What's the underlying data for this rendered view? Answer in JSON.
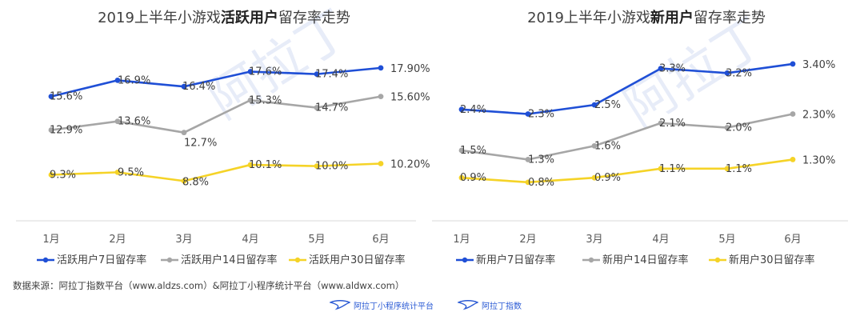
{
  "chart_data": [
    {
      "type": "line",
      "title_parts": [
        "2019上半年小游戏",
        "活跃用户",
        "留存率走势"
      ],
      "categories": [
        "1月",
        "2月",
        "3月",
        "4月",
        "5月",
        "6月"
      ],
      "series": [
        {
          "name": "活跃用户7日留存率",
          "color": "#1f4fd6",
          "values": [
            15.6,
            16.9,
            16.4,
            17.6,
            17.4,
            17.9
          ],
          "labels": [
            "15.6%",
            "16.9%",
            "16.4%",
            "17.6%",
            "17.4%",
            "17.90%"
          ]
        },
        {
          "name": "活跃用户14日留存率",
          "color": "#a6a6a6",
          "values": [
            12.9,
            13.6,
            12.7,
            15.3,
            14.7,
            15.6
          ],
          "labels": [
            "12.9%",
            "13.6%",
            "12.7%",
            "15.3%",
            "14.7%",
            "15.60%"
          ]
        },
        {
          "name": "活跃用户30日留存率",
          "color": "#f5d327",
          "values": [
            9.3,
            9.5,
            8.8,
            10.1,
            10.0,
            10.2
          ],
          "labels": [
            "9.3%",
            "9.5%",
            "8.8%",
            "10.1%",
            "10.0%",
            "10.20%"
          ]
        }
      ],
      "ylim": [
        6.5,
        19.5
      ],
      "grid": false,
      "legend": "bottom"
    },
    {
      "type": "line",
      "title_parts": [
        "2019上半年小游戏",
        "新用户",
        "留存率走势"
      ],
      "categories": [
        "1月",
        "2月",
        "3月",
        "4月",
        "5月",
        "6月"
      ],
      "series": [
        {
          "name": "新用户7日留存率",
          "color": "#1f4fd6",
          "values": [
            2.4,
            2.3,
            2.5,
            3.3,
            3.2,
            3.4
          ],
          "labels": [
            "2.4%",
            "2.3%",
            "2.5%",
            "3.3%",
            "3.2%",
            "3.40%"
          ]
        },
        {
          "name": "新用户14日留存率",
          "color": "#a6a6a6",
          "values": [
            1.5,
            1.3,
            1.6,
            2.1,
            2.0,
            2.3
          ],
          "labels": [
            "1.5%",
            "1.3%",
            "1.6%",
            "2.1%",
            "2.0%",
            "2.30%"
          ]
        },
        {
          "name": "新用户30日留存率",
          "color": "#f5d327",
          "values": [
            0.9,
            0.8,
            0.9,
            1.1,
            1.1,
            1.3
          ],
          "labels": [
            "0.9%",
            "0.8%",
            "0.9%",
            "1.1%",
            "1.1%",
            "1.30%"
          ]
        }
      ],
      "ylim": [
        0.2,
        3.75
      ],
      "grid": false,
      "legend": "bottom"
    }
  ],
  "source_note": "数据来源：阿拉丁指数平台（www.aldzs.com）&阿拉丁小程序统计平台（www.aldwx.com）",
  "footer": {
    "logo1_text": "阿拉丁小程序统计平台",
    "logo2_text": "阿拉丁指数"
  },
  "watermark_text": "阿拉丁"
}
